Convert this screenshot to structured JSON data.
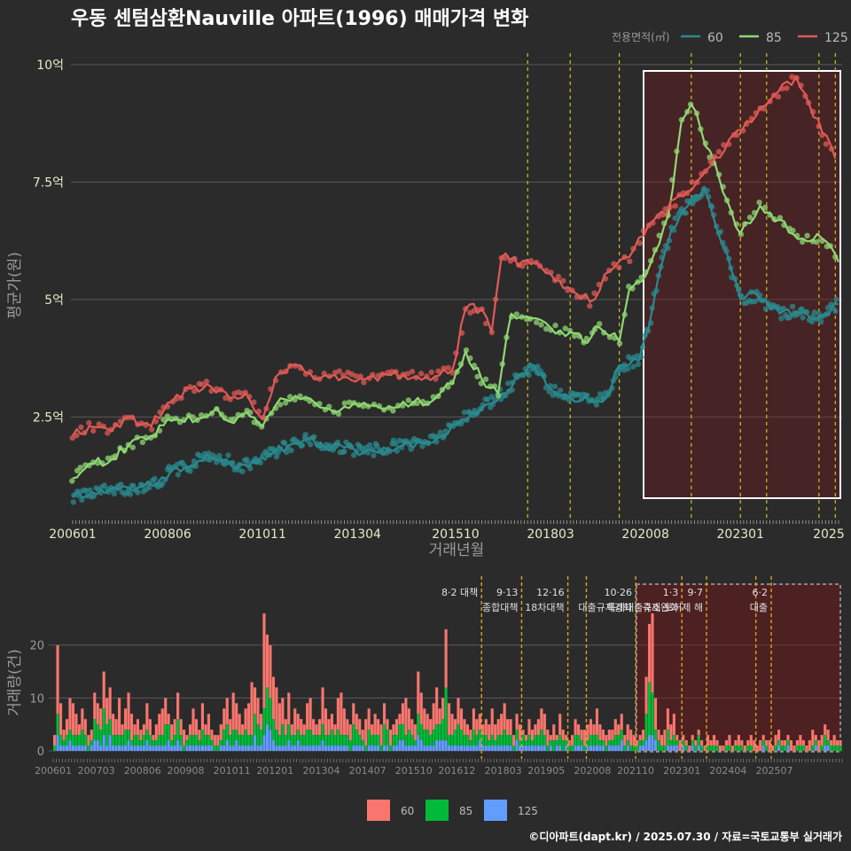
{
  "title": "우동 센텀삼환Nauville 아파트(1996) 매매가격 변화",
  "legend": {
    "title": "전용면적(㎡)",
    "items": [
      {
        "label": "60",
        "color": "#2a8a8e"
      },
      {
        "label": "85",
        "color": "#8fd873"
      },
      {
        "label": "125",
        "color": "#e05a55"
      }
    ]
  },
  "bar_legend": {
    "items": [
      {
        "label": "60",
        "color": "#f8766d"
      },
      {
        "label": "85",
        "color": "#00ba38"
      },
      {
        "label": "125",
        "color": "#619cff"
      }
    ]
  },
  "footer": "©디아파트(dapt.kr) / 2025.07.30 / 자료=국토교통부 실거래가",
  "chart_data": [
    {
      "type": "line",
      "xlabel": "거래년월",
      "ylabel": "평균가(원)",
      "x_range": [
        "2006-01",
        "2025-07"
      ],
      "ylim": [
        0.3,
        10.3
      ],
      "y_ticks": [
        {
          "value": 2.5,
          "label": "2.5억"
        },
        {
          "value": 5,
          "label": "5억"
        },
        {
          "value": 7.5,
          "label": "7.5억"
        },
        {
          "value": 10,
          "label": "10억"
        }
      ],
      "x_ticks": [
        "200601",
        "200806",
        "201011",
        "201304",
        "201510",
        "201803",
        "202008",
        "202301",
        "2025"
      ],
      "grid": true,
      "legend_position": "top-right",
      "policy_lines": [
        "2017-08",
        "2018-09",
        "2019-12",
        "2021-10",
        "2023-01",
        "2023-09",
        "2025-01",
        "2025-06"
      ],
      "highlight_range": [
        "2020-08",
        "2025-07"
      ],
      "series": [
        {
          "name": "60",
          "points": [
            [
              "2006-01",
              0.8
            ],
            [
              "2006-07",
              0.9
            ],
            [
              "2007-03",
              0.95
            ],
            [
              "2007-09",
              1.0
            ],
            [
              "2008-03",
              1.1
            ],
            [
              "2008-07",
              1.35
            ],
            [
              "2009-01",
              1.45
            ],
            [
              "2009-06",
              1.7
            ],
            [
              "2009-12",
              1.6
            ],
            [
              "2010-03",
              1.4
            ],
            [
              "2010-08",
              1.55
            ],
            [
              "2011-01",
              1.7
            ],
            [
              "2011-07",
              1.9
            ],
            [
              "2012-01",
              2.05
            ],
            [
              "2012-06",
              1.85
            ],
            [
              "2012-12",
              1.85
            ],
            [
              "2013-06",
              1.75
            ],
            [
              "2013-12",
              1.85
            ],
            [
              "2014-06",
              1.9
            ],
            [
              "2014-12",
              1.95
            ],
            [
              "2015-06",
              2.1
            ],
            [
              "2015-12",
              2.45
            ],
            [
              "2016-06",
              2.7
            ],
            [
              "2016-12",
              3.0
            ],
            [
              "2017-06",
              3.4
            ],
            [
              "2017-10",
              3.6
            ],
            [
              "2018-03",
              3.1
            ],
            [
              "2018-09",
              2.9
            ],
            [
              "2019-03",
              2.85
            ],
            [
              "2019-08",
              2.9
            ],
            [
              "2019-12",
              3.6
            ],
            [
              "2020-06",
              3.7
            ],
            [
              "2020-09",
              4.4
            ],
            [
              "2020-12",
              5.5
            ],
            [
              "2021-04",
              6.5
            ],
            [
              "2021-09",
              7.0
            ],
            [
              "2022-02",
              7.4
            ],
            [
              "2023-01",
              5.0
            ],
            [
              "2023-06",
              5.1
            ],
            [
              "2024-01",
              4.7
            ],
            [
              "2024-06",
              4.75
            ],
            [
              "2025-01",
              4.6
            ],
            [
              "2025-07",
              4.9
            ]
          ]
        },
        {
          "name": "85",
          "points": [
            [
              "2006-01",
              1.2
            ],
            [
              "2006-06",
              1.5
            ],
            [
              "2007-01",
              1.6
            ],
            [
              "2007-06",
              1.9
            ],
            [
              "2008-01",
              2.1
            ],
            [
              "2008-06",
              2.45
            ],
            [
              "2009-03",
              2.45
            ],
            [
              "2009-09",
              2.7
            ],
            [
              "2010-01",
              2.4
            ],
            [
              "2010-06",
              2.6
            ],
            [
              "2010-11",
              2.3
            ],
            [
              "2011-03",
              2.75
            ],
            [
              "2011-09",
              2.95
            ],
            [
              "2012-03",
              2.8
            ],
            [
              "2012-09",
              2.6
            ],
            [
              "2013-03",
              2.8
            ],
            [
              "2013-09",
              2.75
            ],
            [
              "2014-03",
              2.7
            ],
            [
              "2014-09",
              2.8
            ],
            [
              "2015-03",
              2.85
            ],
            [
              "2015-09",
              3.2
            ],
            [
              "2016-01",
              3.9
            ],
            [
              "2016-06",
              3.3
            ],
            [
              "2016-11",
              3.0
            ],
            [
              "2017-03",
              4.7
            ],
            [
              "2017-09",
              4.6
            ],
            [
              "2018-03",
              4.4
            ],
            [
              "2018-09",
              4.3
            ],
            [
              "2019-01",
              4.1
            ],
            [
              "2019-06",
              4.4
            ],
            [
              "2019-12",
              4.1
            ],
            [
              "2020-03",
              5.2
            ],
            [
              "2020-08",
              5.5
            ],
            [
              "2021-03",
              6.8
            ],
            [
              "2021-07",
              8.8
            ],
            [
              "2021-10",
              9.15
            ],
            [
              "2022-01",
              8.6
            ],
            [
              "2023-01",
              6.4
            ],
            [
              "2023-07",
              7.0
            ],
            [
              "2024-01",
              6.7
            ],
            [
              "2024-08",
              6.3
            ],
            [
              "2025-02",
              6.3
            ],
            [
              "2025-07",
              5.8
            ]
          ]
        },
        {
          "name": "125",
          "points": [
            [
              "2006-01",
              2.1
            ],
            [
              "2006-06",
              2.3
            ],
            [
              "2007-01",
              2.2
            ],
            [
              "2007-06",
              2.5
            ],
            [
              "2008-01",
              2.3
            ],
            [
              "2008-06",
              2.8
            ],
            [
              "2009-01",
              3.1
            ],
            [
              "2009-06",
              3.2
            ],
            [
              "2010-01",
              2.9
            ],
            [
              "2010-06",
              3.0
            ],
            [
              "2010-11",
              2.45
            ],
            [
              "2011-03",
              3.35
            ],
            [
              "2011-09",
              3.6
            ],
            [
              "2012-03",
              3.3
            ],
            [
              "2012-09",
              3.4
            ],
            [
              "2013-06",
              3.3
            ],
            [
              "2014-01",
              3.4
            ],
            [
              "2014-06",
              3.4
            ],
            [
              "2015-01",
              3.35
            ],
            [
              "2015-09",
              3.5
            ],
            [
              "2016-01",
              4.8
            ],
            [
              "2016-06",
              4.8
            ],
            [
              "2016-09",
              4.3
            ],
            [
              "2016-12",
              5.9
            ],
            [
              "2017-09",
              5.75
            ],
            [
              "2018-03",
              5.55
            ],
            [
              "2019-03",
              4.95
            ],
            [
              "2019-09",
              5.6
            ],
            [
              "2020-03",
              5.9
            ],
            [
              "2020-09",
              6.6
            ],
            [
              "2021-09",
              7.3
            ],
            [
              "2023-03",
              8.8
            ],
            [
              "2024-06",
              9.75
            ],
            [
              "2025-06",
              8.0
            ]
          ]
        }
      ]
    },
    {
      "type": "bar",
      "xlabel": "",
      "ylabel": "거래량(건)",
      "ylim": [
        0,
        28
      ],
      "y_ticks": [
        0,
        10,
        20
      ],
      "x_ticks": [
        "200601",
        "200703",
        "200806",
        "200908",
        "201011",
        "201201",
        "201304",
        "201407",
        "201510",
        "201612",
        "201803",
        "201905",
        "202008",
        "202110",
        "202301",
        "202404",
        "202507"
      ],
      "stacked": true,
      "series_order": [
        "125",
        "85",
        "60"
      ],
      "monthly_totals": [
        3,
        20,
        9,
        4,
        6,
        10,
        9,
        7,
        5,
        8,
        6,
        3,
        4,
        11,
        9,
        8,
        15,
        10,
        12,
        7,
        6,
        10,
        5,
        8,
        11,
        7,
        5,
        6,
        4,
        5,
        9,
        6,
        3,
        5,
        7,
        8,
        10,
        7,
        5,
        6,
        11,
        6,
        4,
        3,
        5,
        8,
        6,
        4,
        9,
        5,
        7,
        4,
        3,
        3,
        5,
        8,
        10,
        6,
        11,
        9,
        7,
        5,
        8,
        9,
        13,
        12,
        10,
        7,
        26,
        22,
        20,
        14,
        12,
        9,
        10,
        6,
        11,
        5,
        8,
        7,
        6,
        5,
        9,
        10,
        6,
        5,
        6,
        12,
        8,
        6,
        7,
        5,
        10,
        11,
        8,
        6,
        5,
        9,
        7,
        6,
        4,
        6,
        8,
        5,
        7,
        6,
        5,
        9,
        6,
        4,
        5,
        6,
        7,
        9,
        10,
        8,
        6,
        5,
        15,
        11,
        8,
        7,
        6,
        9,
        12,
        8,
        10,
        23,
        9,
        7,
        6,
        10,
        8,
        6,
        5,
        4,
        8,
        6,
        7,
        5,
        6,
        5,
        8,
        5,
        6,
        7,
        9,
        6,
        6,
        3,
        7,
        5,
        4,
        3,
        6,
        4,
        5,
        6,
        8,
        7,
        4,
        3,
        5,
        3,
        7,
        4,
        3,
        2,
        3,
        6,
        5,
        4,
        4,
        5,
        6,
        5,
        8,
        5,
        4,
        3,
        4,
        4,
        6,
        5,
        7,
        3,
        5,
        4,
        3,
        2,
        3,
        4,
        14,
        24,
        26,
        10,
        4,
        3,
        4,
        8,
        5,
        7,
        3,
        2,
        3,
        2,
        1,
        3,
        2,
        4,
        2,
        1,
        3,
        2,
        3,
        2,
        1,
        1,
        2,
        3,
        1,
        2,
        3,
        2,
        1,
        2,
        3,
        2,
        1,
        2,
        3,
        2,
        2,
        1,
        3,
        4,
        2,
        2,
        3,
        2,
        1,
        2,
        3,
        2,
        1,
        2,
        4,
        3,
        2,
        3,
        5,
        4,
        2,
        3,
        2,
        2
      ]
    }
  ],
  "bar_policy_lines": [
    {
      "month": "2017-08",
      "label_top": "8·2 대책",
      "label_bottom": ""
    },
    {
      "month": "2018-09",
      "label_top": "9·13",
      "label_bottom": "종합대책"
    },
    {
      "month": "2019-12",
      "label_top": "12·16",
      "label_bottom": "18차대책"
    },
    {
      "month": "2020-06",
      "label_top": "",
      "label_bottom": ""
    },
    {
      "month": "2021-10",
      "label_top": "10·26",
      "label_bottom": "대출규제강화"
    },
    {
      "month": "2023-01",
      "label_top": "1·3",
      "label_bottom": "규제완화"
    },
    {
      "month": "2023-09",
      "label_top": "9·7",
      "label_bottom": "특례대출축소 토허제 해"
    },
    {
      "month": "2025-01",
      "label_top": "",
      "label_bottom": ""
    },
    {
      "month": "2025-06",
      "label_top": "6·2",
      "label_bottom": "대출"
    }
  ]
}
